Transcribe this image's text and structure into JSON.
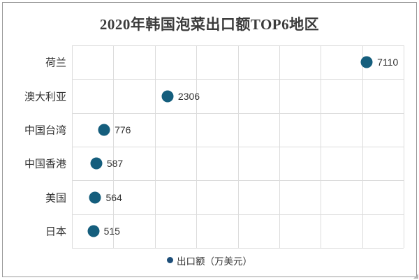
{
  "chart_data": {
    "type": "scatter",
    "orientation": "horizontal",
    "title": "2020年韩国泡菜出口额TOP6地区",
    "categories": [
      "荷兰",
      "澳大利亚",
      "中国台湾",
      "中国香港",
      "美国",
      "日本"
    ],
    "values": [
      7110,
      2306,
      776,
      587,
      564,
      515
    ],
    "data_labels": [
      "7110",
      "2306",
      "776",
      "587",
      "564",
      "515"
    ],
    "legend": {
      "label": "出口额（万美元）",
      "marker": "circle-icon",
      "position": "bottom-center"
    },
    "xlim": [
      0,
      8000
    ],
    "x_grid_interval": 1000,
    "grid": true,
    "axis_tick_labels_visible": false,
    "colors": {
      "dot": "#155e7d",
      "legend_marker": "#1d4e79",
      "grid": "#dcdcdc",
      "text": "#333333",
      "title_text": "#3b3b3b",
      "frame_border": "#9b9b9b",
      "background": "#ffffff"
    }
  }
}
